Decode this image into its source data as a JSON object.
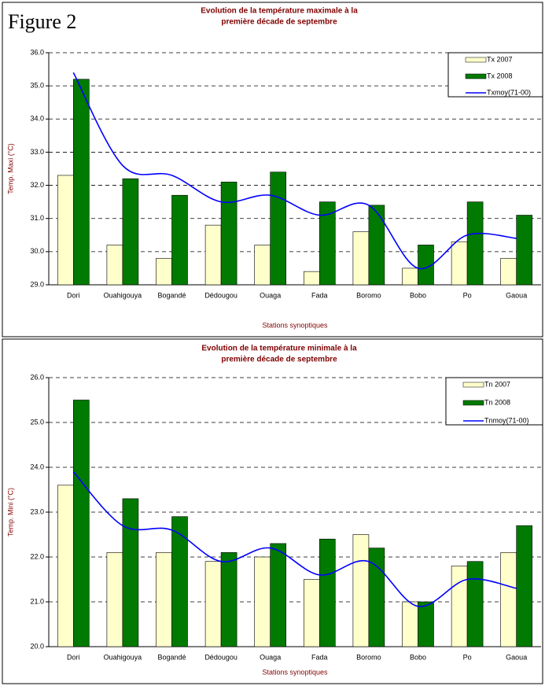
{
  "figure_label": "Figure 2",
  "chart_data": [
    {
      "type": "bar_line",
      "title": [
        "Evolution de la température maximale à la",
        "première décade de septembre"
      ],
      "x_label": "Stations synoptiques",
      "y_label": "Temp. Maxi (°C)",
      "categories": [
        "Dori",
        "Ouahigouya",
        "Bogandé",
        "Dédougou",
        "Ouaga",
        "Fada",
        "Boromo",
        "Bobo",
        "Po",
        "Gaoua"
      ],
      "series": [
        {
          "name": "Tx 2007",
          "kind": "bar",
          "color": "#ffffcc",
          "values": [
            32.3,
            30.2,
            29.8,
            30.8,
            30.2,
            29.4,
            30.6,
            29.5,
            30.3,
            29.8
          ]
        },
        {
          "name": "Tx 2008",
          "kind": "bar",
          "color": "#007a00",
          "values": [
            35.2,
            32.2,
            31.7,
            32.1,
            32.4,
            31.5,
            31.4,
            30.2,
            31.5,
            31.1
          ]
        },
        {
          "name": "Txmoy(71-00)",
          "kind": "line",
          "color": "#0000ff",
          "values": [
            35.4,
            32.6,
            32.3,
            31.5,
            31.7,
            31.1,
            31.4,
            29.5,
            30.5,
            30.4
          ]
        }
      ],
      "ylim": [
        29,
        36
      ],
      "yticks": [
        {
          "value": 29,
          "label": "29.0"
        },
        {
          "value": 30,
          "label": "30.0"
        },
        {
          "value": 31,
          "label": "31.0"
        },
        {
          "value": 32,
          "label": "32.0"
        },
        {
          "value": 33,
          "label": "33.0"
        },
        {
          "value": 34,
          "label": "34.0"
        },
        {
          "value": 35,
          "label": "35.0"
        },
        {
          "value": 36,
          "label": "36.0"
        }
      ],
      "grid": true,
      "legend": "top-right"
    },
    {
      "type": "bar_line",
      "title": [
        "Evolution de la température minimale à la",
        "première décade de septembre"
      ],
      "x_label": "Stations synoptiques",
      "y_label": "Temp. Mini (°C)",
      "categories": [
        "Dori",
        "Ouahigouya",
        "Bogandé",
        "Dédougou",
        "Ouaga",
        "Fada",
        "Boromo",
        "Bobo",
        "Po",
        "Gaoua"
      ],
      "series": [
        {
          "name": "Tn 2007",
          "kind": "bar",
          "color": "#ffffcc",
          "values": [
            23.6,
            22.1,
            22.1,
            21.9,
            22.0,
            21.5,
            22.5,
            21.0,
            21.8,
            22.1
          ]
        },
        {
          "name": "Tn 2008",
          "kind": "bar",
          "color": "#007a00",
          "values": [
            25.5,
            23.3,
            22.9,
            22.1,
            22.3,
            22.4,
            22.2,
            21.0,
            21.9,
            22.7
          ]
        },
        {
          "name": "Tnmoy(71-00)",
          "kind": "line",
          "color": "#0000ff",
          "values": [
            23.9,
            22.7,
            22.6,
            21.9,
            22.2,
            21.6,
            21.9,
            20.9,
            21.5,
            21.3
          ]
        }
      ],
      "ylim": [
        20,
        26
      ],
      "yticks": [
        {
          "value": 20,
          "label": "20.0"
        },
        {
          "value": 21,
          "label": "21.0"
        },
        {
          "value": 22,
          "label": "22.0"
        },
        {
          "value": 23,
          "label": "23.0"
        },
        {
          "value": 24,
          "label": "24.0"
        },
        {
          "value": 25,
          "label": "25.0"
        },
        {
          "value": 26,
          "label": "26.0"
        }
      ],
      "grid": true,
      "legend": "top-right"
    }
  ]
}
